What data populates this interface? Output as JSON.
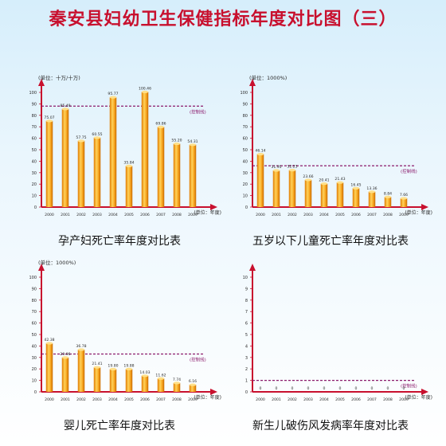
{
  "title": "秦安县妇幼卫生保健指标年度对比图（三）",
  "colors": {
    "title": "#c8102e",
    "bar": "#f4a21c",
    "axis": "#c8102e",
    "threshold": "#8b1a6b",
    "text": "#2a2a2a"
  },
  "chart_data": [
    {
      "type": "bar",
      "caption": "孕产妇死亡率年度对比表",
      "unit_label": "(单位：十万/十万)",
      "xunit_label": "(单位：年度)",
      "threshold_label": "(控制线)",
      "threshold": 88,
      "ylim": [
        0,
        100
      ],
      "yticks": [
        0,
        10,
        20,
        30,
        40,
        50,
        60,
        70,
        80,
        90,
        100
      ],
      "categories": [
        "2000",
        "2001",
        "2002",
        "2003",
        "2004",
        "2005",
        "2006",
        "2007",
        "2008",
        "2009"
      ],
      "values": [
        75.07,
        85.49,
        57.75,
        60.55,
        95.77,
        35.84,
        100.46,
        69.86,
        55.2,
        54.31
      ],
      "value_labels": [
        "75.07",
        "85.49",
        "57.75",
        "60.55",
        "95.77",
        "35.84",
        "100.46",
        "69.86",
        "55.20",
        "54.31"
      ]
    },
    {
      "type": "bar",
      "caption": "五岁以下儿童死亡率年度对比表",
      "unit_label": "(单位：1000%)",
      "xunit_label": "(单位：年度)",
      "threshold_label": "(控制线)",
      "threshold": 36,
      "ylim": [
        0,
        100
      ],
      "yticks": [
        0,
        10,
        20,
        30,
        40,
        50,
        60,
        70,
        80,
        90,
        100
      ],
      "categories": [
        "2000",
        "2001",
        "2002",
        "2003",
        "2004",
        "2005",
        "2006",
        "2007",
        "2008",
        "2009"
      ],
      "values": [
        46.14,
        31.95,
        32.23,
        23.66,
        20.41,
        21.43,
        16.45,
        13.36,
        8.84,
        7.66
      ],
      "value_labels": [
        "46.14",
        "31.95",
        "32.23",
        "23.66",
        "20.41",
        "21.43",
        "16.45",
        "13.36",
        "8.84",
        "7.66"
      ]
    },
    {
      "type": "bar",
      "caption": "婴儿死亡率年度对比表",
      "unit_label": "(单位：1000%)",
      "xunit_label": "(单位：年度)",
      "threshold_label": "(控制线)",
      "threshold": 33,
      "ylim": [
        0,
        100
      ],
      "yticks": [
        0,
        10,
        20,
        30,
        40,
        50,
        60,
        70,
        80,
        90,
        100
      ],
      "categories": [
        "2000",
        "2001",
        "2002",
        "2003",
        "2004",
        "2005",
        "2006",
        "2007",
        "2008",
        "2009"
      ],
      "values": [
        42.38,
        29.96,
        36.78,
        21.41,
        19.8,
        19.88,
        14.03,
        11.62,
        7.74,
        6.16
      ],
      "value_labels": [
        "42.38",
        "29.96",
        "36.78",
        "21.41",
        "19.80",
        "19.88",
        "14.03",
        "11.62",
        "7.74",
        "6.16"
      ]
    },
    {
      "type": "bar",
      "caption": "新生儿破伤风发病率年度对比表",
      "unit_label": "",
      "xunit_label": "(单位：年度)",
      "threshold_label": "(控制线)",
      "threshold": 1,
      "ylim": [
        0,
        10
      ],
      "yticks": [
        0,
        1,
        2,
        3,
        4,
        5,
        6,
        7,
        8,
        9,
        10
      ],
      "categories": [
        "2000",
        "2001",
        "2002",
        "2003",
        "2004",
        "2005",
        "2006",
        "2007",
        "2008",
        "2009"
      ],
      "values": [
        0,
        0,
        0,
        0,
        0,
        0,
        0,
        0,
        0,
        0
      ],
      "value_labels": [
        "0",
        "0",
        "0",
        "0",
        "0",
        "0",
        "0",
        "0",
        "0",
        "0"
      ]
    }
  ]
}
